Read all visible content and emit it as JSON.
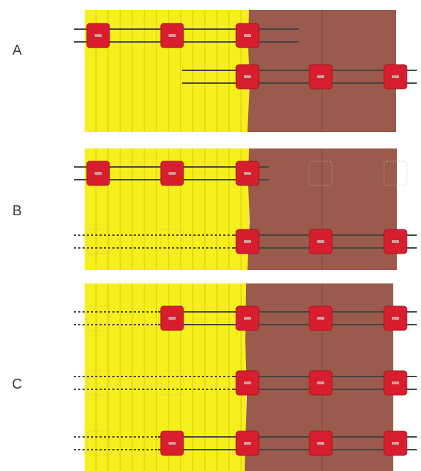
{
  "panels": [
    {
      "label": "A",
      "rows": [
        {
          "blocks": [
            "solid",
            "solid",
            "solid",
            "none",
            "none"
          ],
          "lead": "solid"
        },
        {
          "blocks": [
            "none",
            "none",
            "solid",
            "solid",
            "solid"
          ],
          "lead": "none"
        }
      ]
    },
    {
      "label": "B",
      "rows": [
        {
          "blocks": [
            "solid",
            "solid",
            "solid",
            "faded",
            "faded"
          ],
          "lead": "solid"
        },
        {
          "blocks": [
            "faded",
            "faded",
            "solid",
            "solid",
            "solid"
          ],
          "lead": "dotted"
        }
      ]
    },
    {
      "label": "C",
      "rows": [
        {
          "blocks": [
            "faded",
            "solid",
            "solid",
            "solid",
            "solid"
          ],
          "lead": "dotted"
        },
        {
          "blocks": [
            "faded",
            "faded",
            "solid",
            "solid",
            "solid"
          ],
          "lead": "dotted"
        },
        {
          "blocks": [
            "faded",
            "solid",
            "solid",
            "solid",
            "solid"
          ],
          "lead": "dotted"
        }
      ]
    }
  ],
  "colors": {
    "yellow": "#f7ef1c",
    "yellow_line": "#c9c112",
    "brown": "#9a5a4c",
    "red": "#d81e2e",
    "red_dark": "#a81420",
    "wire": "#444444"
  }
}
